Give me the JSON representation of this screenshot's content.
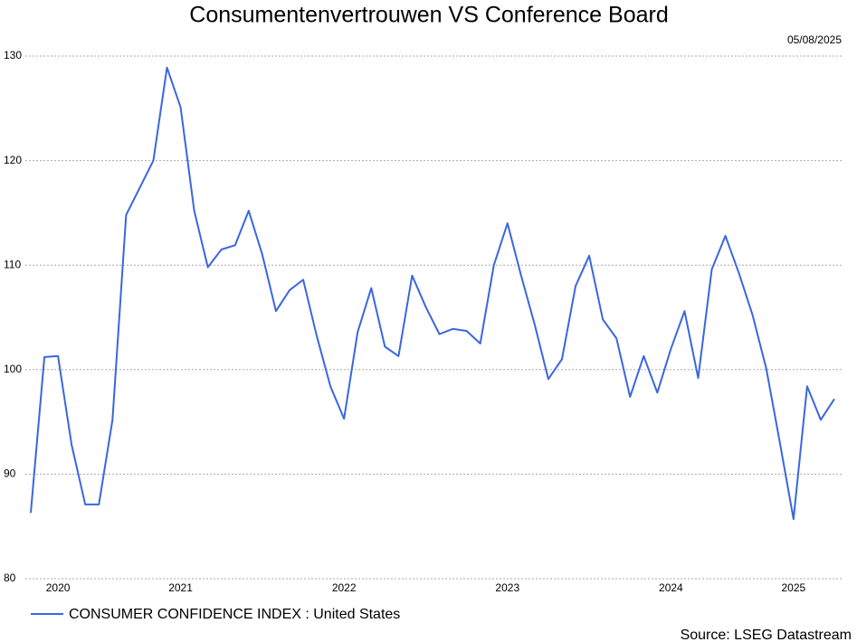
{
  "chart_data": {
    "type": "line",
    "title": "Consumentenvertrouwen VS Conference Board",
    "date": "05/08/2025",
    "source": "Source: LSEG Datastream",
    "categories": [
      null,
      null,
      "2020",
      null,
      null,
      null,
      null,
      null,
      null,
      null,
      null,
      "2021",
      null,
      null,
      null,
      null,
      null,
      null,
      null,
      null,
      null,
      null,
      null,
      "2022",
      null,
      null,
      null,
      null,
      null,
      null,
      null,
      null,
      null,
      null,
      null,
      "2023",
      null,
      null,
      null,
      null,
      null,
      null,
      null,
      null,
      null,
      null,
      null,
      "2024",
      null,
      null,
      null,
      null,
      null,
      null,
      null,
      null,
      "2025",
      null,
      null,
      null
    ],
    "series": [
      {
        "name": "CONSUMER CONFIDENCE INDEX : United States",
        "color": "#3a66e0",
        "values": [
          86.3,
          101.2,
          101.3,
          92.8,
          87.1,
          87.1,
          95.2,
          114.8,
          117.4,
          120.0,
          128.9,
          125.1,
          115.2,
          109.8,
          111.5,
          111.9,
          115.2,
          111.0,
          105.6,
          107.6,
          108.6,
          103.2,
          98.4,
          95.3,
          103.6,
          107.8,
          102.2,
          101.3,
          109.0,
          106.0,
          103.4,
          103.9,
          103.7,
          102.5,
          110.0,
          114.0,
          109.0,
          104.3,
          99.1,
          101.0,
          108.0,
          110.9,
          104.8,
          103.0,
          97.4,
          101.3,
          97.8,
          102.0,
          105.6,
          99.2,
          109.6,
          112.8,
          109.2,
          105.2,
          100.1,
          93.0,
          85.7,
          98.4,
          95.2,
          97.2
        ]
      }
    ],
    "ylim": [
      80,
      130
    ],
    "yticks": [
      80,
      90,
      100,
      110,
      120,
      130
    ],
    "grid": true
  }
}
